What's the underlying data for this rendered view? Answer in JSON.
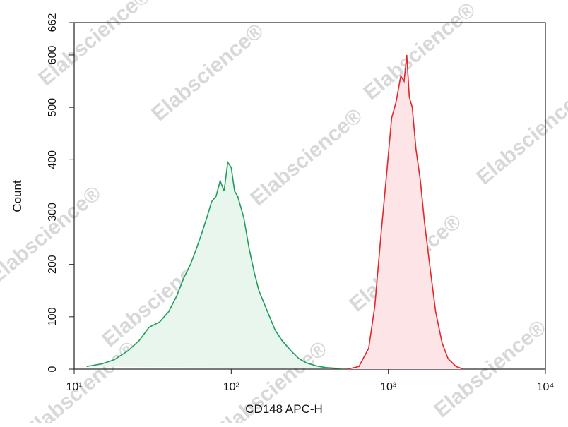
{
  "chart_data": {
    "type": "histogram-overlay",
    "x_label": "CD148 APC-H",
    "y_label": "Count",
    "watermark": "Elabscience®",
    "xscale": "log",
    "xlim": [
      10,
      10000
    ],
    "xticks": [
      {
        "value": 10,
        "label": "10¹"
      },
      {
        "value": 100,
        "label": "10²"
      },
      {
        "value": 1000,
        "label": "10³"
      },
      {
        "value": 10000,
        "label": "10⁴"
      }
    ],
    "ylim": [
      0,
      662
    ],
    "yticks": [
      0,
      100,
      200,
      300,
      400,
      500,
      600,
      662
    ],
    "series": [
      {
        "color": "#1e9e58",
        "fill_color": "#e9f6ee",
        "x": [
          12,
          15,
          18,
          22,
          26,
          30,
          35,
          40,
          45,
          50,
          55,
          60,
          65,
          70,
          75,
          80,
          85,
          90,
          95,
          100,
          105,
          110,
          120,
          130,
          140,
          150,
          170,
          190,
          210,
          240,
          270,
          300,
          350,
          400,
          500
        ],
        "values": [
          5,
          10,
          18,
          35,
          55,
          80,
          90,
          110,
          140,
          175,
          200,
          230,
          260,
          290,
          320,
          330,
          360,
          340,
          395,
          385,
          340,
          330,
          290,
          230,
          185,
          150,
          110,
          75,
          55,
          35,
          20,
          12,
          6,
          3,
          1
        ]
      },
      {
        "color": "#e3262b",
        "fill_color": "#fde4e6",
        "x": [
          550,
          650,
          750,
          820,
          900,
          980,
          1050,
          1120,
          1200,
          1260,
          1310,
          1360,
          1420,
          1500,
          1600,
          1700,
          1850,
          2000,
          2200,
          2400,
          2700,
          3000
        ],
        "values": [
          0,
          5,
          40,
          120,
          260,
          380,
          480,
          510,
          560,
          550,
          600,
          520,
          500,
          420,
          360,
          280,
          190,
          110,
          50,
          20,
          5,
          0
        ]
      }
    ]
  }
}
